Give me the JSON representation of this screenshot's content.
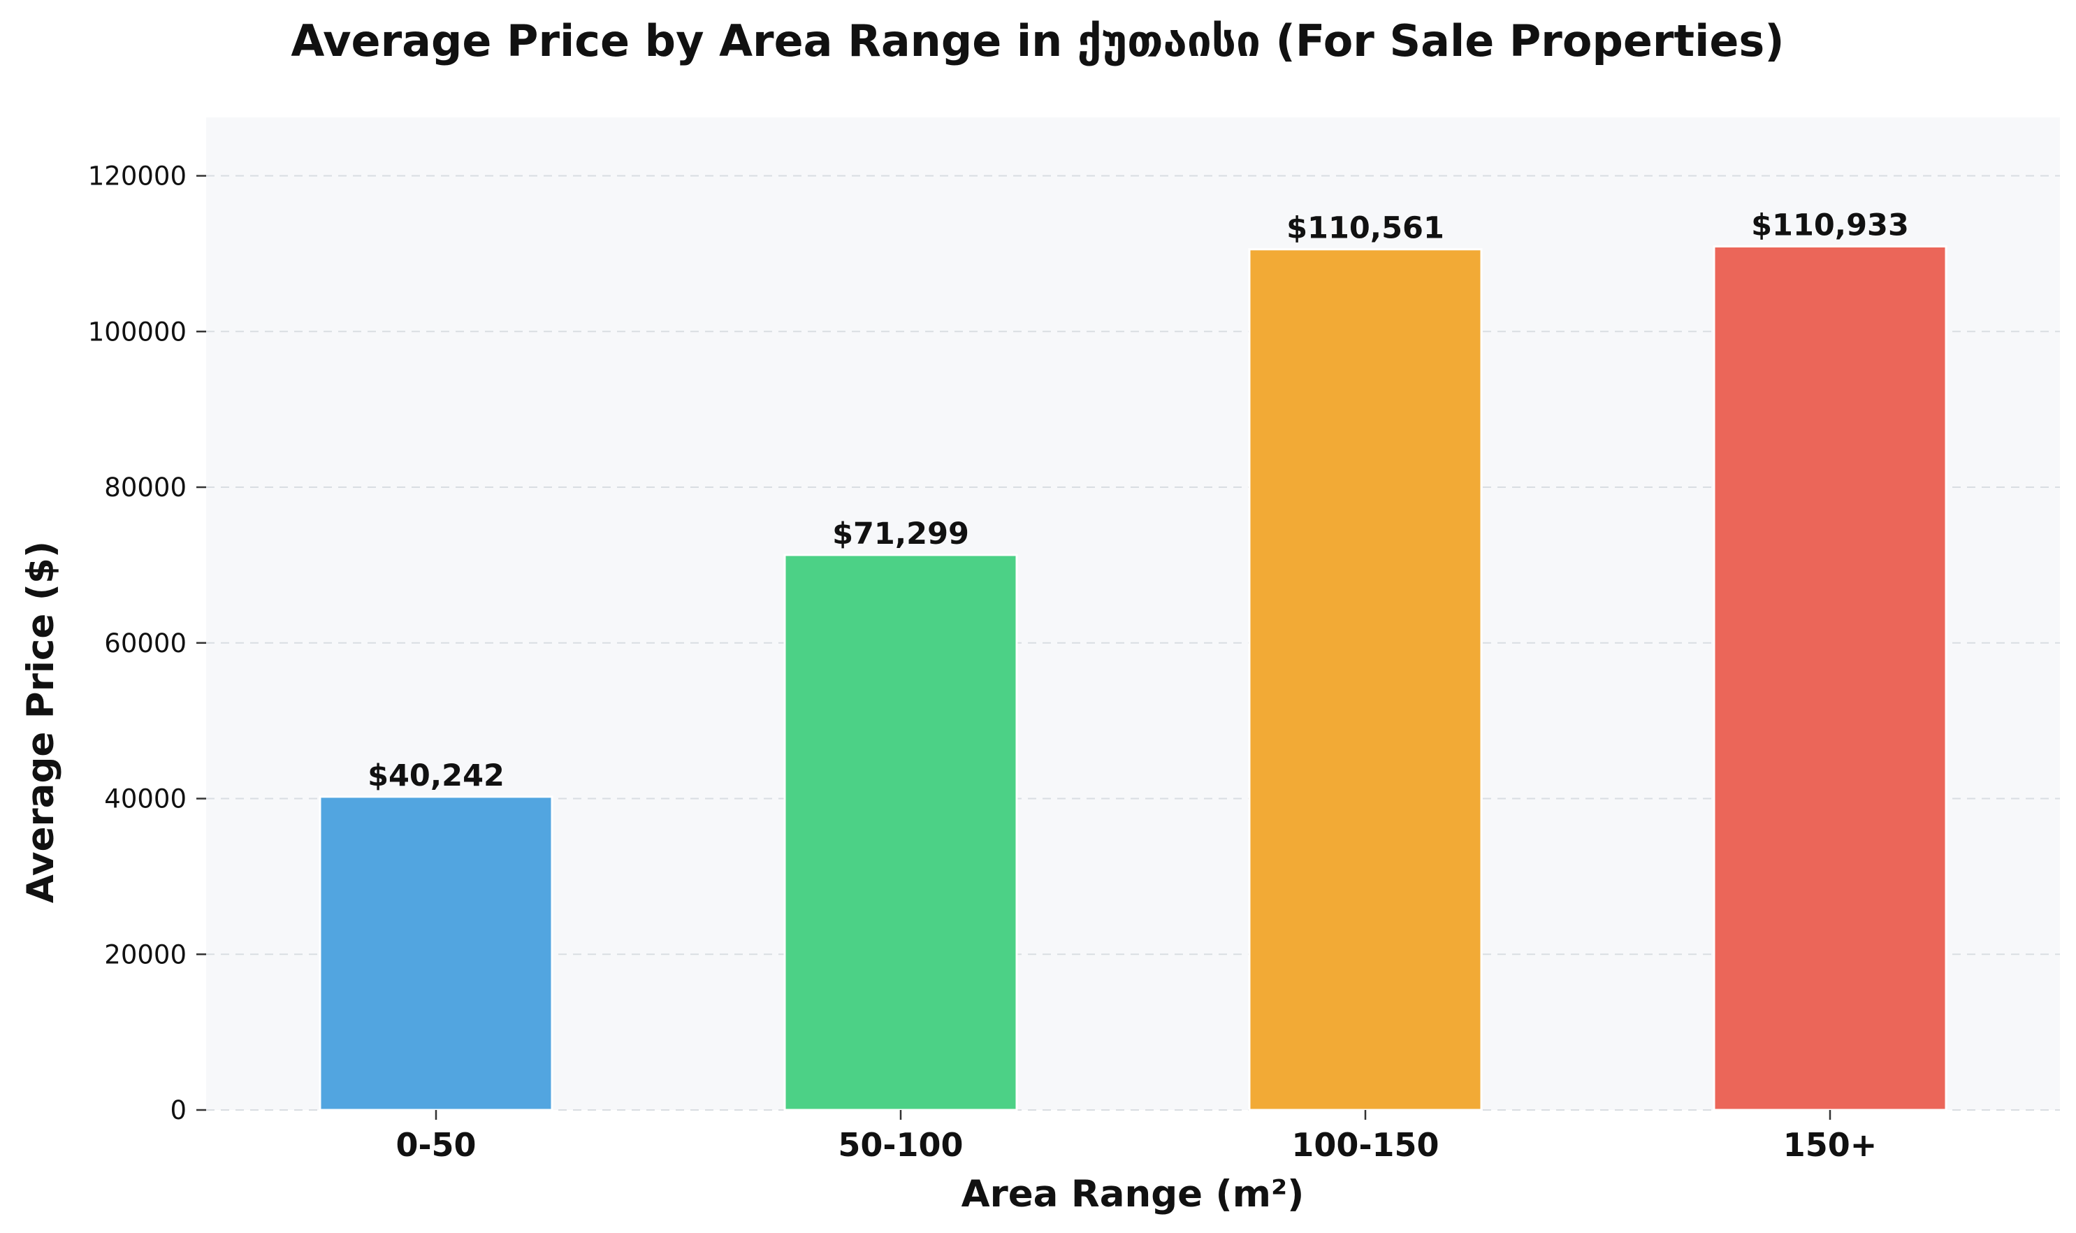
{
  "chart_data": {
    "type": "bar",
    "title": "Average Price by Area Range in ქუთაისი (For Sale Properties)",
    "xlabel": "Area Range (m²)",
    "ylabel": "Average Price ($)",
    "categories": [
      "0-50",
      "50-100",
      "100-150",
      "150+"
    ],
    "values": [
      40242,
      71299,
      110561,
      110933
    ],
    "value_labels": [
      "$40,242",
      "$71,299",
      "$110,561",
      "$110,933"
    ],
    "colors": [
      "#52a5e0",
      "#4cd186",
      "#f2aa36",
      "#eb6659"
    ],
    "ylim": [
      0,
      127500
    ],
    "yticks": [
      0,
      20000,
      40000,
      60000,
      80000,
      100000,
      120000
    ],
    "ytick_labels": [
      "0",
      "20000",
      "40000",
      "60000",
      "80000",
      "100000",
      "120000"
    ],
    "grid": true,
    "plot_background": "#f7f8fa"
  }
}
